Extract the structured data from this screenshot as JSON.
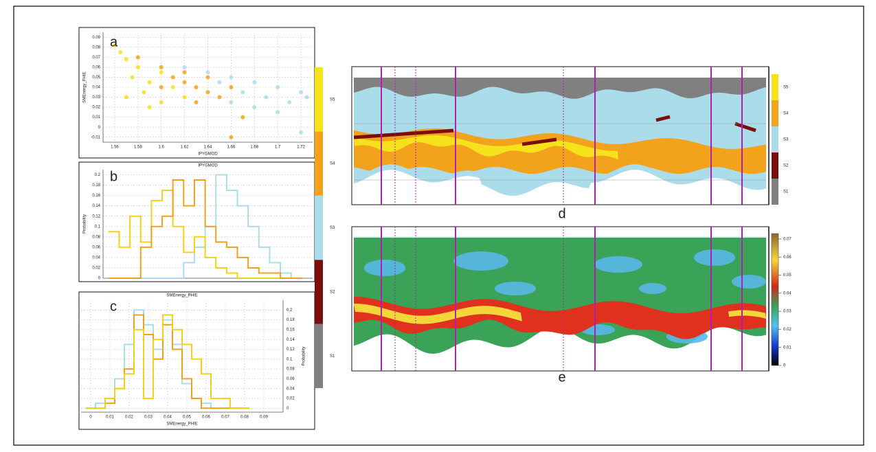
{
  "chart_data": [
    {
      "type": "scatter",
      "panel_label": "a",
      "x_label": "IPYGMOD",
      "y_label": "SMEnergy_PHIE",
      "xlim": [
        1.55,
        1.73
      ],
      "xticks": [
        1.56,
        1.58,
        1.6,
        1.62,
        1.64,
        1.66,
        1.68,
        1.7,
        1.72
      ],
      "ylim": [
        -0.015,
        0.095
      ],
      "yticks": [
        -0.01,
        0,
        0.01,
        0.02,
        0.03,
        0.04,
        0.05,
        0.06,
        0.07,
        0.08,
        0.09
      ],
      "grid": true,
      "series": [
        {
          "name": "S3",
          "color": "#aadcea",
          "x": [
            1.62,
            1.64,
            1.66,
            1.68,
            1.7,
            1.72,
            1.67,
            1.69,
            1.71,
            1.65,
            1.68,
            1.7,
            1.66,
            1.725,
            1.72
          ],
          "y": [
            0.06,
            0.055,
            0.05,
            0.045,
            0.04,
            0.035,
            0.035,
            0.03,
            0.025,
            0.045,
            0.02,
            0.015,
            0.025,
            0.03,
            -0.005
          ]
        },
        {
          "name": "S4",
          "color": "#f3a21b",
          "x": [
            1.58,
            1.6,
            1.61,
            1.62,
            1.63,
            1.64,
            1.65,
            1.62,
            1.6,
            1.64,
            1.66,
            1.63,
            1.67,
            1.66
          ],
          "y": [
            0.07,
            0.06,
            0.05,
            0.045,
            0.04,
            0.035,
            0.03,
            0.055,
            0.04,
            0.05,
            0.04,
            0.025,
            0.01,
            -0.01
          ]
        },
        {
          "name": "S5",
          "color": "#f5e21a",
          "x": [
            1.56,
            1.565,
            1.57,
            1.58,
            1.575,
            1.59,
            1.6,
            1.585,
            1.61,
            1.62,
            1.57,
            1.6,
            1.59
          ],
          "y": [
            0.082,
            0.075,
            0.068,
            0.06,
            0.05,
            0.045,
            0.055,
            0.035,
            0.04,
            0.03,
            0.03,
            0.025,
            0.02
          ]
        }
      ]
    },
    {
      "type": "step",
      "panel_label": "b",
      "title": "IPYGMOD",
      "y_label": "Probability",
      "xlim": [
        1.55,
        1.745
      ],
      "ylim": [
        0,
        0.21
      ],
      "yticks": [
        0,
        0.02,
        0.04,
        0.06,
        0.08,
        0.1,
        0.12,
        0.14,
        0.16,
        0.18,
        0.2
      ],
      "grid": true,
      "x": [
        1.56,
        1.57,
        1.58,
        1.59,
        1.6,
        1.61,
        1.62,
        1.63,
        1.64,
        1.65,
        1.66,
        1.67,
        1.68,
        1.69,
        1.7,
        1.71,
        1.72,
        1.73
      ],
      "series": [
        {
          "name": "S3",
          "color": "#aadcea",
          "values": [
            0,
            0,
            0,
            0,
            0,
            0,
            0,
            0.03,
            0.06,
            0.1,
            0.2,
            0.17,
            0.14,
            0.1,
            0.06,
            0.03,
            0.01,
            0
          ]
        },
        {
          "name": "S5",
          "color": "#f5d01a",
          "values": [
            0.09,
            0.06,
            0.12,
            0.07,
            0.15,
            0.17,
            0.1,
            0.05,
            0.08,
            0.04,
            0.02,
            0.01,
            0,
            0,
            0,
            0,
            0,
            0
          ]
        },
        {
          "name": "S4",
          "color": "#f0a020",
          "values": [
            0,
            0,
            0,
            0.06,
            0.1,
            0.12,
            0.19,
            0.14,
            0.19,
            0.1,
            0.07,
            0.06,
            0.04,
            0.02,
            0.01,
            0.01,
            0,
            0
          ]
        }
      ]
    },
    {
      "type": "step",
      "panel_label": "c",
      "title": "SMEnergy_PHIE",
      "x_label": "SMEnergy_PHIE",
      "y_label": "Probability",
      "xlim": [
        -0.005,
        0.1
      ],
      "xticks": [
        0,
        0.01,
        0.02,
        0.03,
        0.04,
        0.05,
        0.06,
        0.07,
        0.08,
        0.09
      ],
      "ylim": [
        -0.008,
        0.22
      ],
      "yticks": [
        0,
        0.02,
        0.04,
        0.06,
        0.08,
        0.1,
        0.12,
        0.14,
        0.16,
        0.18,
        0.2
      ],
      "grid": true,
      "x": [
        0,
        0.005,
        0.01,
        0.015,
        0.02,
        0.025,
        0.03,
        0.035,
        0.04,
        0.045,
        0.05,
        0.055,
        0.06,
        0.065,
        0.07,
        0.075,
        0.08
      ],
      "series": [
        {
          "name": "S3",
          "color": "#aadcea",
          "values": [
            0,
            0.01,
            0.02,
            0.06,
            0.13,
            0.2,
            0.17,
            0.12,
            0.18,
            0.13,
            0.05,
            0.02,
            0.01,
            0,
            0,
            0,
            0
          ]
        },
        {
          "name": "S4",
          "color": "#f0a020",
          "values": [
            0,
            0,
            0.01,
            0.04,
            0.08,
            0.19,
            0.15,
            0.1,
            0.17,
            0.12,
            0.06,
            0.02,
            0,
            0,
            0,
            0,
            0
          ]
        },
        {
          "name": "S5",
          "color": "#f5d01a",
          "values": [
            0,
            0,
            0.02,
            0.04,
            0.07,
            0.16,
            0.02,
            0.14,
            0.19,
            0.16,
            0.13,
            0.1,
            0.07,
            0.02,
            0.02,
            0,
            0
          ]
        }
      ]
    }
  ],
  "facies_colorbar": {
    "labels": [
      "S1",
      "S2",
      "S3",
      "S4",
      "S5"
    ],
    "colors": [
      "#808080",
      "#7a0e0e",
      "#aadcea",
      "#f3a21b",
      "#f5e21a"
    ]
  },
  "sections": [
    {
      "label": "d"
    },
    {
      "label": "e",
      "colorbar_lim": [
        0,
        0.073
      ],
      "colorbar_ticks": [
        0,
        0.01,
        0.02,
        0.03,
        0.04,
        0.05,
        0.06,
        0.07
      ]
    }
  ]
}
